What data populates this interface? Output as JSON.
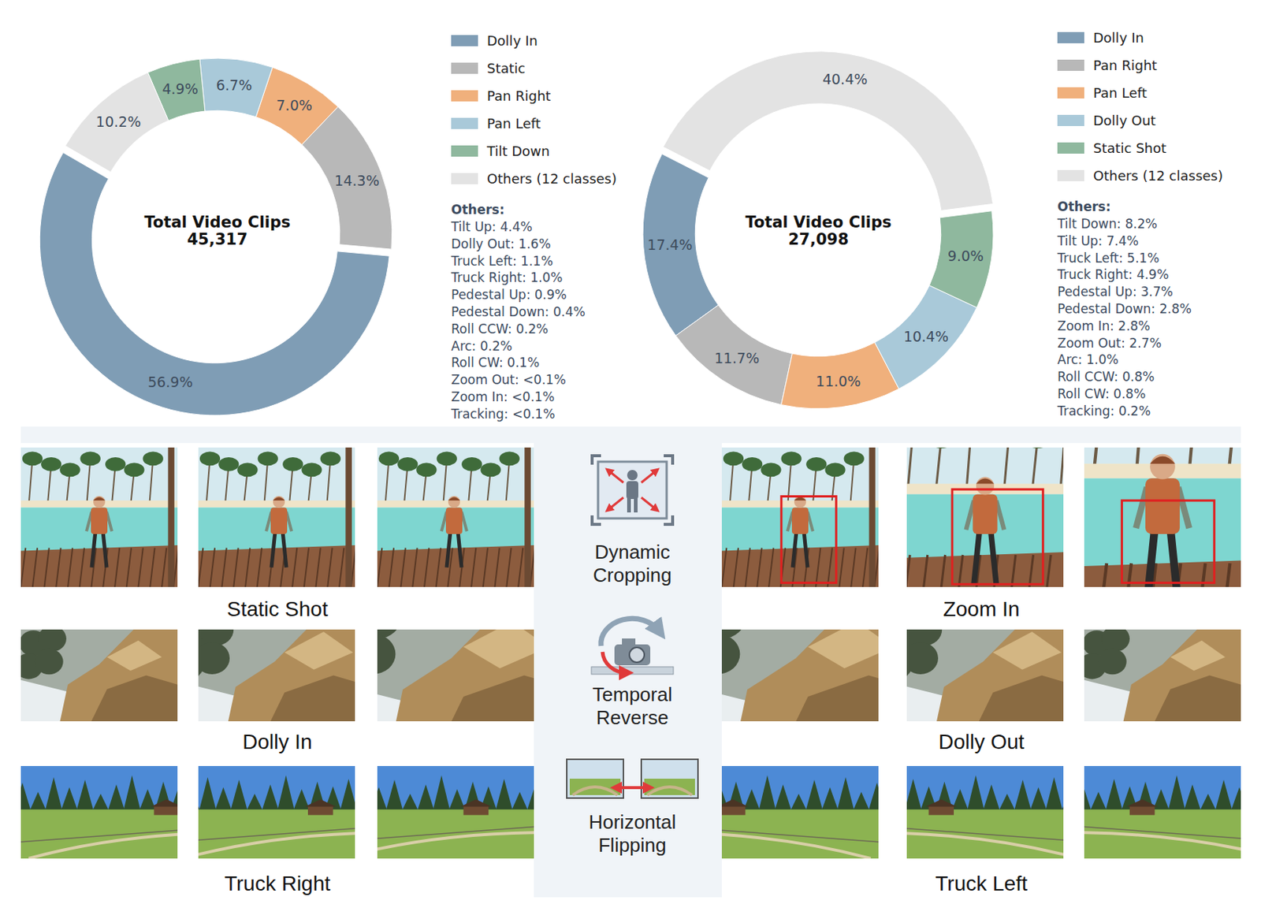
{
  "chart_data": [
    {
      "type": "donut",
      "center_label": "Total Video Clips",
      "total": {
        "value": 45317,
        "label": "45,317"
      },
      "categories": [
        "Dolly In",
        "Static",
        "Pan Right",
        "Pan Left",
        "Tilt Down",
        "Others (12 classes)"
      ],
      "values": [
        56.9,
        14.3,
        7.0,
        6.7,
        4.9,
        10.2
      ],
      "value_labels": [
        "56.9%",
        "14.3%",
        "7.0%",
        "6.7%",
        "4.9%",
        "10.2%"
      ],
      "colors": [
        "#7f9db5",
        "#b8b8b8",
        "#f0b07c",
        "#a9c9d9",
        "#8fb89e",
        "#e3e3e3"
      ],
      "data_labels": true,
      "legend": "right",
      "others_title": "Others:",
      "others": [
        "Tilt Up: 4.4%",
        "Dolly Out: 1.6%",
        "Truck Left: 1.1%",
        "Truck Right: 1.0%",
        "Pedestal Up: 0.9%",
        "Pedestal Down: 0.4%",
        "Roll CCW: 0.2%",
        "Arc: 0.2%",
        "Roll CW: 0.1%",
        "Zoom Out: <0.1%",
        "Zoom In: <0.1%",
        "Tracking: <0.1%"
      ]
    },
    {
      "type": "donut",
      "center_label": "Total Video Clips",
      "total": {
        "value": 27098,
        "label": "27,098"
      },
      "categories": [
        "Dolly In",
        "Pan Right",
        "Pan Left",
        "Dolly Out",
        "Static Shot",
        "Others (12 classes)"
      ],
      "values": [
        17.4,
        11.7,
        11.0,
        10.4,
        9.0,
        40.4
      ],
      "value_labels": [
        "17.4%",
        "11.7%",
        "11.0%",
        "10.4%",
        "9.0%",
        "40.4%"
      ],
      "colors": [
        "#7f9db5",
        "#b8b8b8",
        "#f0b07c",
        "#a9c9d9",
        "#8fb89e",
        "#e3e3e3"
      ],
      "data_labels": true,
      "legend": "right",
      "others_title": "Others:",
      "others": [
        "Tilt Down: 8.2%",
        "Tilt Up: 7.4%",
        "Truck Left: 5.1%",
        "Truck Right: 4.9%",
        "Pedestal Up: 3.7%",
        "Pedestal Down: 2.8%",
        "Zoom In: 2.8%",
        "Zoom Out: 2.7%",
        "Arc: 1.0%",
        "Roll CCW: 0.8%",
        "Roll CW: 0.8%",
        "Tracking: 0.2%"
      ]
    }
  ],
  "augmentation_panel": {
    "rows": [
      {
        "left": "Static Shot",
        "operation": "Dynamic Cropping",
        "right": "Zoom In"
      },
      {
        "left": "Dolly In",
        "operation": "Temporal Reverse",
        "right": "Dolly Out"
      },
      {
        "left": "Truck Right",
        "operation": "Horizontal Flipping",
        "right": "Truck Left"
      }
    ]
  }
}
